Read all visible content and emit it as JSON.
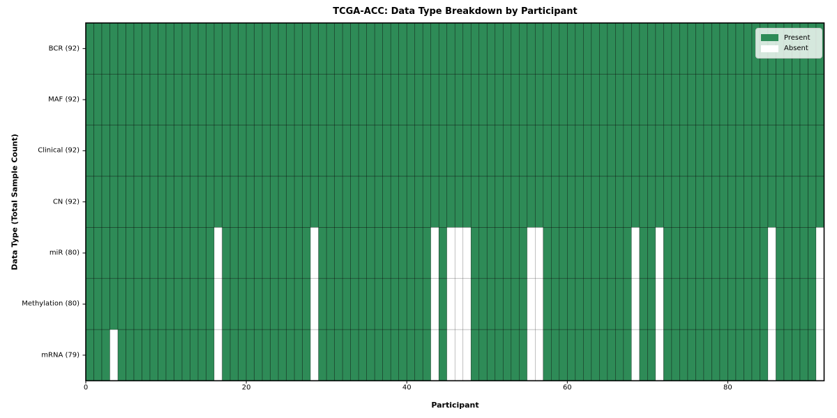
{
  "chart_data": {
    "type": "heatmap",
    "title": "TCGA-ACC: Data Type Breakdown by Participant",
    "xlabel": "Participant",
    "ylabel": "Data Type (Total Sample Count)",
    "n_participants": 92,
    "x_ticks": [
      0,
      20,
      40,
      60,
      80
    ],
    "grid": true,
    "legend": {
      "position": "upper-right",
      "items": [
        {
          "label": "Present",
          "color": "#2e8b57"
        },
        {
          "label": "Absent",
          "color": "#ffffff"
        }
      ]
    },
    "rows": [
      {
        "label": "BCR (92)",
        "data_type": "BCR",
        "present_count": 92,
        "absent_participants": []
      },
      {
        "label": "MAF (92)",
        "data_type": "MAF",
        "present_count": 92,
        "absent_participants": []
      },
      {
        "label": "Clinical (92)",
        "data_type": "Clinical",
        "present_count": 92,
        "absent_participants": []
      },
      {
        "label": "CN (92)",
        "data_type": "CN",
        "present_count": 92,
        "absent_participants": []
      },
      {
        "label": "miR (80)",
        "data_type": "miR",
        "present_count": 80,
        "absent_participants": [
          16,
          28,
          43,
          45,
          46,
          47,
          55,
          56,
          68,
          71,
          85,
          91
        ]
      },
      {
        "label": "Methylation (80)",
        "data_type": "Methylation",
        "present_count": 80,
        "absent_participants": [
          16,
          28,
          43,
          45,
          46,
          47,
          55,
          56,
          68,
          71,
          85,
          91
        ]
      },
      {
        "label": "mRNA (79)",
        "data_type": "mRNA",
        "present_count": 79,
        "absent_participants": [
          3,
          16,
          28,
          43,
          45,
          46,
          47,
          55,
          56,
          68,
          71,
          85,
          91
        ]
      }
    ]
  }
}
